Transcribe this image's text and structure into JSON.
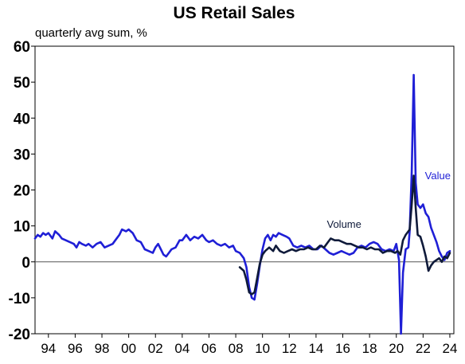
{
  "chart_data": {
    "type": "line",
    "title": "US Retail Sales",
    "subtitle": "quarterly avg sum, %",
    "xlabel": "",
    "ylabel": "",
    "xlim": [
      1993,
      2024.3
    ],
    "ylim": [
      -20,
      60
    ],
    "y_ticks": [
      60,
      50,
      40,
      30,
      20,
      10,
      0,
      -10,
      -20
    ],
    "x_ticks": [
      {
        "x": 1994,
        "label": "94"
      },
      {
        "x": 1996,
        "label": "96"
      },
      {
        "x": 1998,
        "label": "98"
      },
      {
        "x": 2000,
        "label": "00"
      },
      {
        "x": 2002,
        "label": "02"
      },
      {
        "x": 2004,
        "label": "04"
      },
      {
        "x": 2006,
        "label": "06"
      },
      {
        "x": 2008,
        "label": "08"
      },
      {
        "x": 2010,
        "label": "10"
      },
      {
        "x": 2012,
        "label": "12"
      },
      {
        "x": 2014,
        "label": "14"
      },
      {
        "x": 2016,
        "label": "16"
      },
      {
        "x": 2018,
        "label": "18"
      },
      {
        "x": 2020,
        "label": "20"
      },
      {
        "x": 2022,
        "label": "22"
      },
      {
        "x": 2024,
        "label": "24"
      }
    ],
    "grid": false,
    "zero_line": true,
    "series": [
      {
        "name": "Value",
        "color": "#1f1fd6",
        "label_at": [
          2023.1,
          23
        ],
        "points": [
          [
            1993.0,
            6.5
          ],
          [
            1993.2,
            7.5
          ],
          [
            1993.4,
            7.0
          ],
          [
            1993.6,
            8.0
          ],
          [
            1993.8,
            7.5
          ],
          [
            1994.0,
            8.0
          ],
          [
            1994.3,
            6.5
          ],
          [
            1994.5,
            8.5
          ],
          [
            1994.8,
            7.5
          ],
          [
            1995.0,
            6.5
          ],
          [
            1995.3,
            6.0
          ],
          [
            1995.6,
            5.5
          ],
          [
            1995.9,
            5.0
          ],
          [
            1996.1,
            4.0
          ],
          [
            1996.3,
            5.5
          ],
          [
            1996.5,
            5.0
          ],
          [
            1996.8,
            4.5
          ],
          [
            1997.0,
            5.0
          ],
          [
            1997.3,
            4.0
          ],
          [
            1997.6,
            5.0
          ],
          [
            1997.9,
            5.5
          ],
          [
            1998.2,
            4.0
          ],
          [
            1998.5,
            4.5
          ],
          [
            1998.8,
            5.0
          ],
          [
            1999.0,
            6.0
          ],
          [
            1999.3,
            7.5
          ],
          [
            1999.5,
            9.0
          ],
          [
            1999.8,
            8.5
          ],
          [
            2000.0,
            9.0
          ],
          [
            2000.3,
            8.0
          ],
          [
            2000.6,
            6.0
          ],
          [
            2000.9,
            5.5
          ],
          [
            2001.2,
            3.5
          ],
          [
            2001.5,
            3.0
          ],
          [
            2001.8,
            2.5
          ],
          [
            2002.0,
            4.0
          ],
          [
            2002.2,
            5.0
          ],
          [
            2002.4,
            3.5
          ],
          [
            2002.6,
            2.0
          ],
          [
            2002.8,
            1.5
          ],
          [
            2003.0,
            2.5
          ],
          [
            2003.2,
            3.5
          ],
          [
            2003.5,
            4.0
          ],
          [
            2003.8,
            6.0
          ],
          [
            2004.0,
            6.0
          ],
          [
            2004.3,
            7.5
          ],
          [
            2004.6,
            6.0
          ],
          [
            2004.9,
            7.0
          ],
          [
            2005.2,
            6.5
          ],
          [
            2005.5,
            7.5
          ],
          [
            2005.8,
            6.0
          ],
          [
            2006.0,
            5.5
          ],
          [
            2006.3,
            6.0
          ],
          [
            2006.6,
            5.0
          ],
          [
            2006.9,
            4.5
          ],
          [
            2007.2,
            5.0
          ],
          [
            2007.5,
            4.0
          ],
          [
            2007.8,
            4.5
          ],
          [
            2008.0,
            3.0
          ],
          [
            2008.3,
            2.5
          ],
          [
            2008.6,
            1.0
          ],
          [
            2008.8,
            -1.5
          ],
          [
            2009.0,
            -7.0
          ],
          [
            2009.2,
            -10.0
          ],
          [
            2009.4,
            -10.5
          ],
          [
            2009.6,
            -6.0
          ],
          [
            2009.8,
            -1.0
          ],
          [
            2010.0,
            3.5
          ],
          [
            2010.2,
            6.5
          ],
          [
            2010.4,
            7.5
          ],
          [
            2010.6,
            6.0
          ],
          [
            2010.8,
            7.5
          ],
          [
            2011.0,
            7.0
          ],
          [
            2011.2,
            8.0
          ],
          [
            2011.5,
            7.5
          ],
          [
            2011.8,
            7.0
          ],
          [
            2012.0,
            6.5
          ],
          [
            2012.3,
            4.5
          ],
          [
            2012.6,
            4.0
          ],
          [
            2012.9,
            4.5
          ],
          [
            2013.2,
            4.0
          ],
          [
            2013.5,
            4.5
          ],
          [
            2013.8,
            3.5
          ],
          [
            2014.1,
            3.5
          ],
          [
            2014.4,
            4.5
          ],
          [
            2014.7,
            3.5
          ],
          [
            2015.0,
            2.5
          ],
          [
            2015.3,
            2.0
          ],
          [
            2015.6,
            2.5
          ],
          [
            2015.9,
            3.0
          ],
          [
            2016.2,
            2.5
          ],
          [
            2016.5,
            2.0
          ],
          [
            2016.8,
            2.5
          ],
          [
            2017.1,
            4.0
          ],
          [
            2017.4,
            4.5
          ],
          [
            2017.7,
            4.0
          ],
          [
            2018.0,
            5.0
          ],
          [
            2018.3,
            5.5
          ],
          [
            2018.6,
            5.0
          ],
          [
            2018.9,
            3.5
          ],
          [
            2019.2,
            3.0
          ],
          [
            2019.5,
            3.5
          ],
          [
            2019.8,
            3.0
          ],
          [
            2020.0,
            5.0
          ],
          [
            2020.2,
            0.5
          ],
          [
            2020.35,
            -20.0
          ],
          [
            2020.5,
            -3.0
          ],
          [
            2020.7,
            3.5
          ],
          [
            2020.9,
            4.0
          ],
          [
            2021.0,
            8.5
          ],
          [
            2021.15,
            25.0
          ],
          [
            2021.3,
            52.0
          ],
          [
            2021.45,
            22.0
          ],
          [
            2021.6,
            16.0
          ],
          [
            2021.8,
            15.0
          ],
          [
            2022.0,
            16.0
          ],
          [
            2022.2,
            13.5
          ],
          [
            2022.4,
            12.5
          ],
          [
            2022.6,
            9.5
          ],
          [
            2022.8,
            7.5
          ],
          [
            2023.0,
            5.5
          ],
          [
            2023.2,
            3.0
          ],
          [
            2023.4,
            1.5
          ],
          [
            2023.6,
            0.5
          ],
          [
            2023.8,
            2.5
          ],
          [
            2024.0,
            3.0
          ]
        ]
      },
      {
        "name": "Volume",
        "color": "#0f1a3a",
        "label_at": [
          2016.1,
          9.5
        ],
        "points": [
          [
            2008.3,
            -1.5
          ],
          [
            2008.6,
            -2.5
          ],
          [
            2008.8,
            -5.0
          ],
          [
            2009.0,
            -8.5
          ],
          [
            2009.2,
            -9.0
          ],
          [
            2009.4,
            -8.5
          ],
          [
            2009.6,
            -4.5
          ],
          [
            2009.8,
            -0.5
          ],
          [
            2010.0,
            2.0
          ],
          [
            2010.2,
            3.0
          ],
          [
            2010.5,
            4.0
          ],
          [
            2010.8,
            3.0
          ],
          [
            2011.0,
            4.5
          ],
          [
            2011.3,
            3.0
          ],
          [
            2011.6,
            2.5
          ],
          [
            2011.9,
            3.0
          ],
          [
            2012.2,
            3.5
          ],
          [
            2012.5,
            3.0
          ],
          [
            2012.8,
            3.5
          ],
          [
            2013.1,
            3.5
          ],
          [
            2013.4,
            4.0
          ],
          [
            2013.7,
            3.5
          ],
          [
            2014.0,
            3.5
          ],
          [
            2014.3,
            4.5
          ],
          [
            2014.6,
            4.0
          ],
          [
            2014.9,
            5.5
          ],
          [
            2015.1,
            6.5
          ],
          [
            2015.4,
            6.0
          ],
          [
            2015.7,
            6.0
          ],
          [
            2016.0,
            5.5
          ],
          [
            2016.3,
            5.0
          ],
          [
            2016.6,
            5.0
          ],
          [
            2016.9,
            4.5
          ],
          [
            2017.2,
            4.0
          ],
          [
            2017.5,
            4.0
          ],
          [
            2017.8,
            3.5
          ],
          [
            2018.1,
            4.0
          ],
          [
            2018.4,
            3.5
          ],
          [
            2018.7,
            3.5
          ],
          [
            2019.0,
            2.5
          ],
          [
            2019.3,
            3.0
          ],
          [
            2019.6,
            3.0
          ],
          [
            2019.9,
            2.5
          ],
          [
            2020.1,
            3.0
          ],
          [
            2020.3,
            2.0
          ],
          [
            2020.5,
            6.0
          ],
          [
            2020.7,
            7.5
          ],
          [
            2020.9,
            8.5
          ],
          [
            2021.0,
            9.0
          ],
          [
            2021.15,
            16.0
          ],
          [
            2021.3,
            24.0
          ],
          [
            2021.45,
            15.0
          ],
          [
            2021.6,
            7.5
          ],
          [
            2021.8,
            7.0
          ],
          [
            2022.0,
            4.5
          ],
          [
            2022.2,
            1.5
          ],
          [
            2022.4,
            -2.5
          ],
          [
            2022.6,
            -1.0
          ],
          [
            2022.8,
            0.0
          ],
          [
            2023.0,
            0.5
          ],
          [
            2023.2,
            1.0
          ],
          [
            2023.4,
            0.0
          ],
          [
            2023.6,
            1.5
          ],
          [
            2023.8,
            1.0
          ],
          [
            2024.0,
            2.5
          ]
        ]
      }
    ]
  }
}
